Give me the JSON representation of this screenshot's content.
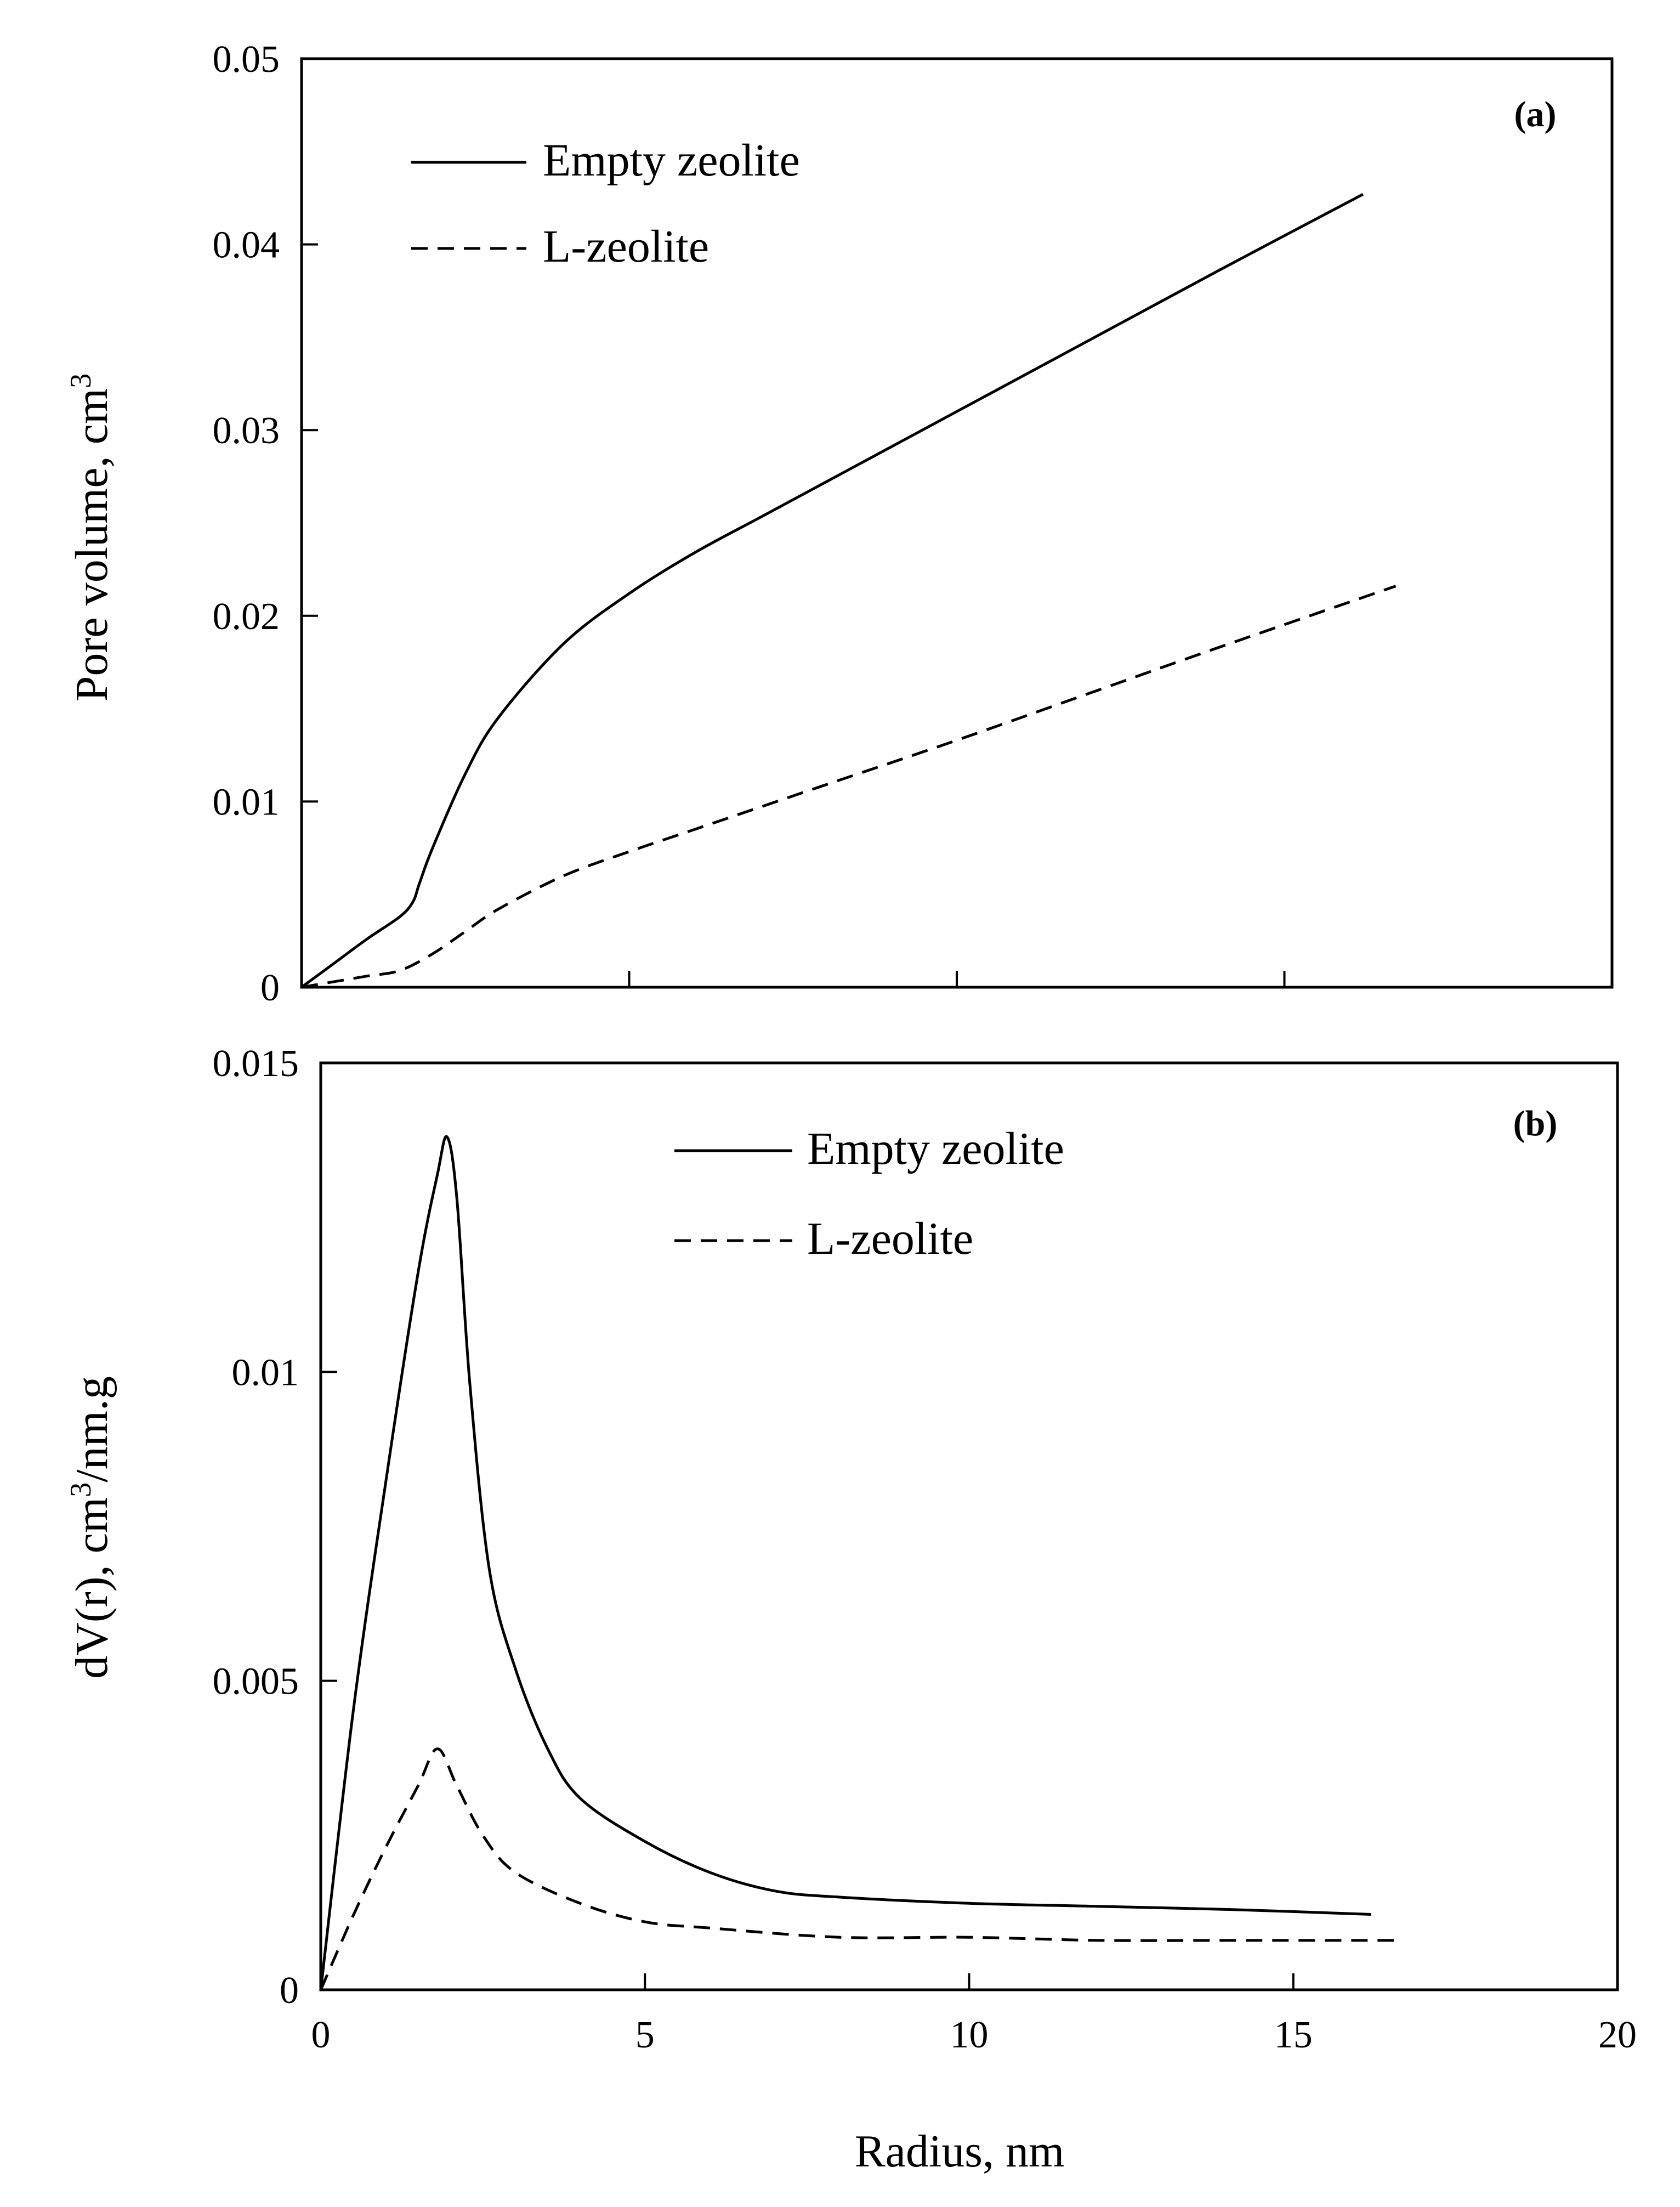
{
  "chart_data": [
    {
      "id": "a",
      "type": "line",
      "panel_label": "(a)",
      "ylabel": "Pore volume, cm",
      "ylabel_sup": "3",
      "xlabel": "",
      "xlim": [
        0,
        20
      ],
      "ylim": [
        0,
        0.05
      ],
      "xticks": [
        0,
        5,
        10,
        15,
        20
      ],
      "yticks": [
        0,
        0.01,
        0.02,
        0.03,
        0.04,
        0.05
      ],
      "ytick_labels": [
        "0",
        "0.01",
        "0.02",
        "0.03",
        "0.04",
        "0.05"
      ],
      "legend_position": "top-left",
      "series": [
        {
          "name": "Empty zeolite",
          "style": "solid",
          "x": [
            0,
            0.5,
            1.0,
            1.5,
            1.7,
            1.8,
            2.0,
            2.5,
            3.0,
            4.0,
            5.0,
            6.0,
            7.0,
            8.0,
            10.0,
            12.0,
            14.0,
            16.2
          ],
          "y": [
            0,
            0.0013,
            0.0026,
            0.0038,
            0.0046,
            0.0056,
            0.0075,
            0.0115,
            0.0145,
            0.0185,
            0.0212,
            0.0234,
            0.0253,
            0.0272,
            0.031,
            0.0348,
            0.0386,
            0.0427
          ]
        },
        {
          "name": "L-zeolite",
          "style": "dashed",
          "x": [
            0,
            0.5,
            1.0,
            1.5,
            2.0,
            2.5,
            3.0,
            4.0,
            5.0,
            6.0,
            8.0,
            10.0,
            12.0,
            14.0,
            16.7
          ],
          "y": [
            0,
            0.0003,
            0.0006,
            0.0009,
            0.0018,
            0.003,
            0.0042,
            0.006,
            0.0073,
            0.0085,
            0.0109,
            0.0133,
            0.0158,
            0.0183,
            0.0216
          ]
        }
      ]
    },
    {
      "id": "b",
      "type": "line",
      "panel_label": "(b)",
      "ylabel": "dV(r), cm",
      "ylabel_sup": "3",
      "ylabel_suffix": "/nm.g",
      "xlabel": "Radius, nm",
      "xlim": [
        0,
        20
      ],
      "ylim": [
        0,
        0.015
      ],
      "xticks": [
        0,
        5,
        10,
        15,
        20
      ],
      "xtick_labels": [
        "0",
        "5",
        "10",
        "15",
        "20"
      ],
      "yticks": [
        0,
        0.005,
        0.01,
        0.015
      ],
      "ytick_labels": [
        "0",
        "0.005",
        "0.01",
        "0.015"
      ],
      "legend_position": "top-center",
      "series": [
        {
          "name": "Empty zeolite",
          "style": "solid",
          "x": [
            0,
            0.5,
            1.0,
            1.5,
            1.8,
            1.95,
            2.1,
            2.3,
            2.6,
            3.0,
            3.5,
            4.0,
            5.0,
            6.0,
            7.0,
            8.0,
            10.0,
            12.0,
            14.0,
            16.2
          ],
          "y": [
            0,
            0.0045,
            0.0082,
            0.0116,
            0.0132,
            0.0138,
            0.0128,
            0.0098,
            0.0068,
            0.0052,
            0.0039,
            0.0031,
            0.0024,
            0.0019,
            0.0016,
            0.0015,
            0.0014,
            0.00135,
            0.0013,
            0.00122
          ]
        },
        {
          "name": "L-zeolite",
          "style": "dashed",
          "x": [
            0,
            0.5,
            1.0,
            1.5,
            1.8,
            2.1,
            2.5,
            3.0,
            4.0,
            5.0,
            6.0,
            8.0,
            10.0,
            12.0,
            14.0,
            16.7
          ],
          "y": [
            0,
            0.0012,
            0.0023,
            0.0033,
            0.0039,
            0.0033,
            0.0025,
            0.0019,
            0.0014,
            0.0011,
            0.001,
            0.00085,
            0.00085,
            0.0008,
            0.0008,
            0.0008
          ]
        }
      ]
    }
  ]
}
